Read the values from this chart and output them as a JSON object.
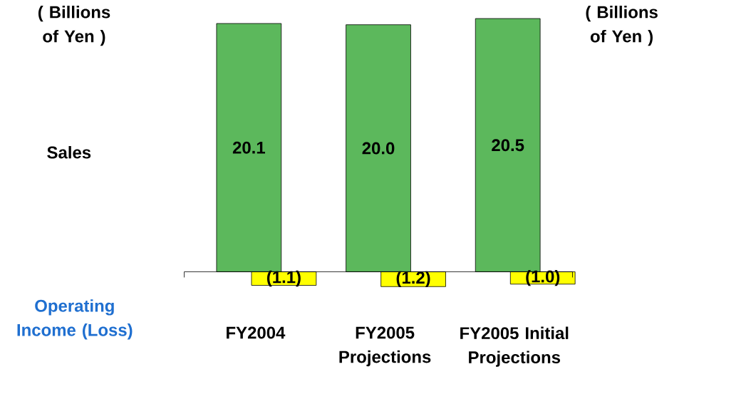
{
  "chart_data": {
    "type": "bar",
    "categories": [
      "FY2004",
      "FY2005 Projections",
      "FY2005 Initial Projections"
    ],
    "series": [
      {
        "color": "#5cb85c",
        "values": [
          20.1,
          20.0,
          20.5
        ],
        "value_labels": [
          "20.1",
          "20.0",
          "20.5"
        ]
      },
      {
        "color": "#ffff00",
        "values": [
          -1.1,
          -1.2,
          -1.0
        ],
        "value_labels": [
          "(1.1)",
          "(1.2)",
          "(1.0)"
        ]
      }
    ],
    "annotations": [
      "( Billions of Yen )",
      "( Billions of Yen )",
      "Sales",
      "Operating Income (Loss)"
    ]
  }
}
